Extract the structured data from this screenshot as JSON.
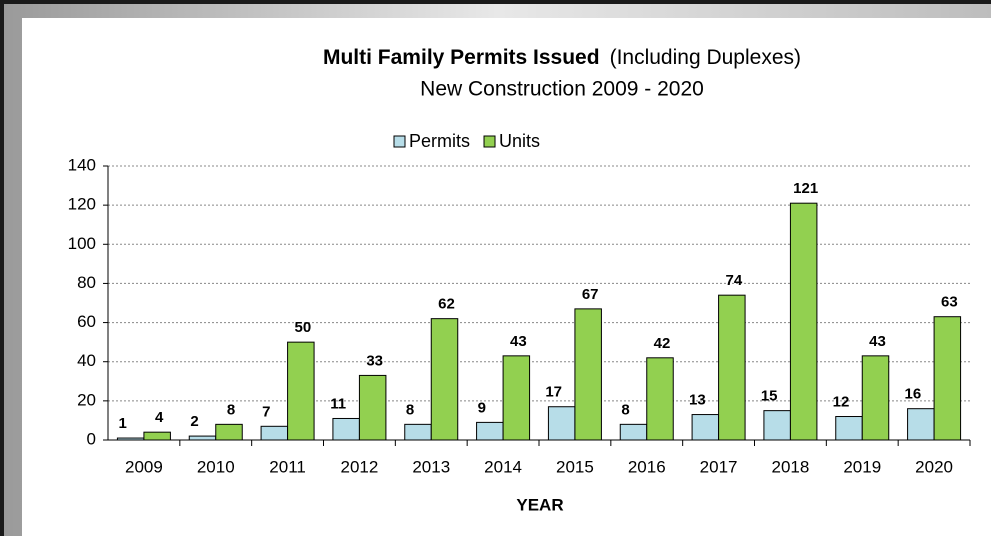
{
  "chart_data": {
    "type": "bar",
    "title": "Multi Family Permits Issued",
    "title_note": "(Including Duplexes)",
    "subtitle": "New Construction 2009 - 2020",
    "x_label": "YEAR",
    "categories": [
      "2009",
      "2010",
      "2011",
      "2012",
      "2013",
      "2014",
      "2015",
      "2016",
      "2017",
      "2018",
      "2019",
      "2020"
    ],
    "series": [
      {
        "name": "Permits",
        "color": "#b7dde8",
        "values": [
          1,
          2,
          7,
          11,
          8,
          9,
          17,
          8,
          13,
          15,
          12,
          16
        ]
      },
      {
        "name": "Units",
        "color": "#92d050",
        "values": [
          4,
          8,
          50,
          33,
          62,
          43,
          67,
          42,
          74,
          121,
          43,
          63
        ]
      }
    ],
    "ylim": [
      0,
      140
    ],
    "yticks": [
      0,
      20,
      40,
      60,
      80,
      100,
      120,
      140
    ],
    "grid": true,
    "legend": "top"
  }
}
